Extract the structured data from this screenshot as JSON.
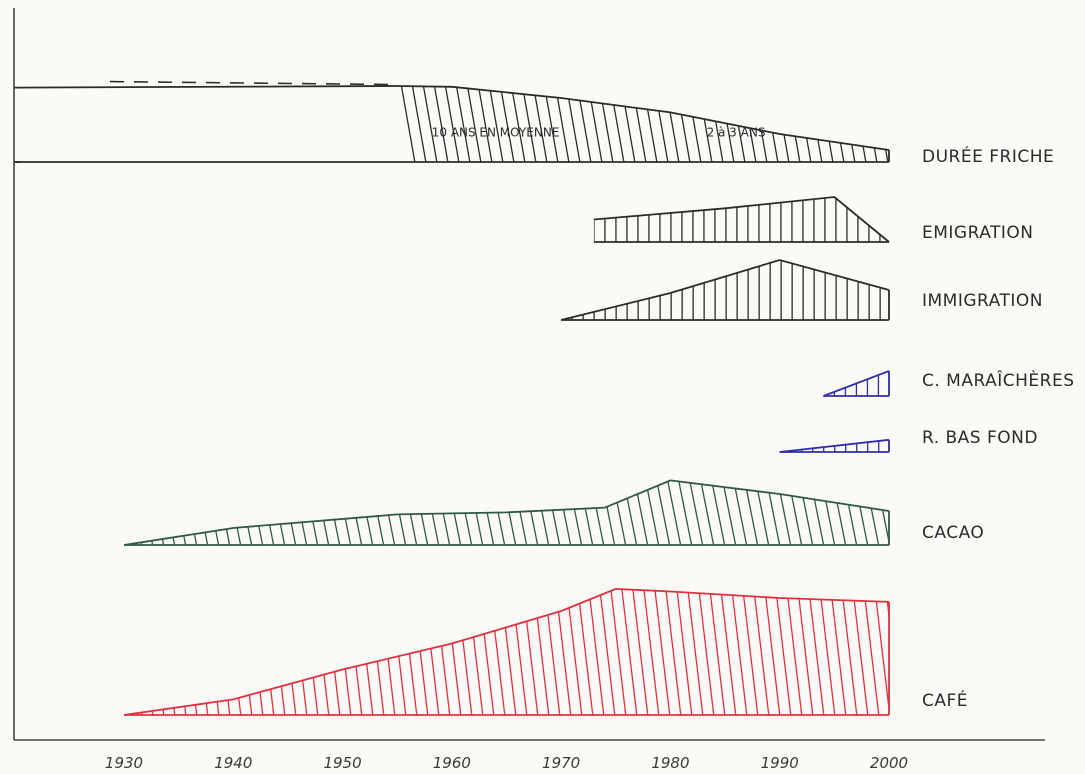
{
  "chart_data": {
    "type": "area",
    "x_ticks": [
      "1930",
      "1940",
      "1950",
      "1960",
      "1970",
      "1980",
      "1990",
      "2000"
    ],
    "xlim": [
      1929,
      2000
    ],
    "series": [
      {
        "name": "DURÉE FRICHE",
        "color": "#2b2b2b",
        "baseline_from": 1920,
        "dashed_until": 1955,
        "hatch_from": 1955,
        "points": [
          [
            1920,
            0.93
          ],
          [
            1955,
            0.95
          ],
          [
            1960,
            0.94
          ],
          [
            1970,
            0.8
          ],
          [
            1980,
            0.62
          ],
          [
            1990,
            0.35
          ],
          [
            2000,
            0.15
          ]
        ],
        "annotations": [
          {
            "text": "10 ANS EN MOYENNE",
            "x": 1964
          },
          {
            "text": "2 à 3 ANS",
            "x": 1986
          }
        ]
      },
      {
        "name": "EMIGRATION",
        "color": "#2b2b2b",
        "points": [
          [
            1973,
            0.3
          ],
          [
            1985,
            0.45
          ],
          [
            1995,
            0.6
          ],
          [
            2000,
            0.0
          ]
        ]
      },
      {
        "name": "IMMIGRATION",
        "color": "#2b2b2b",
        "points": [
          [
            1970,
            0.0
          ],
          [
            1980,
            0.45
          ],
          [
            1990,
            1.0
          ],
          [
            2000,
            0.5
          ]
        ]
      },
      {
        "name": "C. MARAÎCHÈRES",
        "color": "#2e2ea8",
        "points": [
          [
            1994,
            0.0
          ],
          [
            2000,
            0.5
          ]
        ]
      },
      {
        "name": "R. BAS FOND",
        "color": "#2e2ea8",
        "points": [
          [
            1990,
            0.0
          ],
          [
            2000,
            0.35
          ]
        ]
      },
      {
        "name": "CACAO",
        "color": "#2e5a45",
        "points": [
          [
            1930,
            0.0
          ],
          [
            1940,
            0.25
          ],
          [
            1955,
            0.45
          ],
          [
            1965,
            0.48
          ],
          [
            1974,
            0.55
          ],
          [
            1980,
            0.95
          ],
          [
            1990,
            0.75
          ],
          [
            2000,
            0.5
          ]
        ]
      },
      {
        "name": "CAFÉ",
        "color": "#e03040",
        "points": [
          [
            1930,
            0.0
          ],
          [
            1940,
            0.12
          ],
          [
            1950,
            0.35
          ],
          [
            1960,
            0.55
          ],
          [
            1970,
            0.8
          ],
          [
            1975,
            0.97
          ],
          [
            1980,
            0.95
          ],
          [
            1990,
            0.9
          ],
          [
            2000,
            0.87
          ]
        ]
      }
    ]
  }
}
